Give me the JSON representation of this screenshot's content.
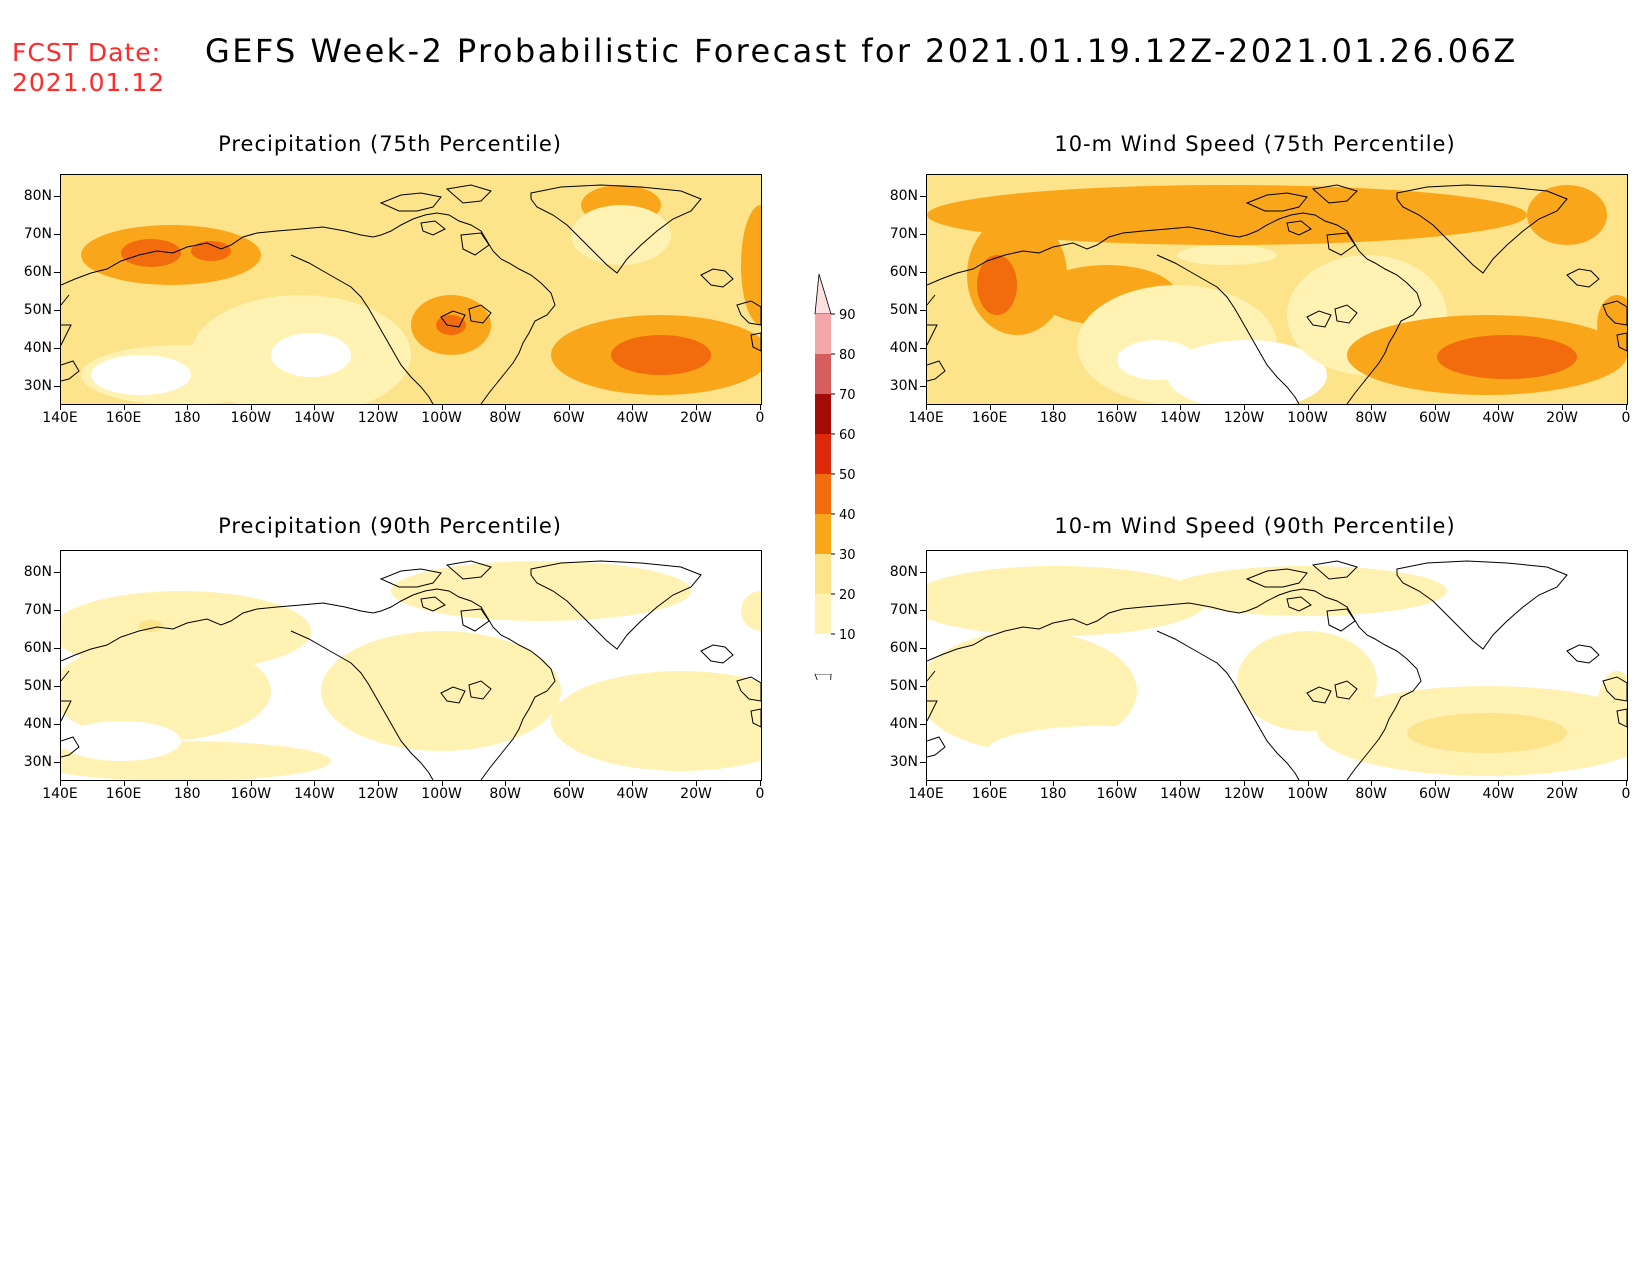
{
  "header": {
    "fcst_label": "FCST Date:",
    "fcst_value": "2021.01.12",
    "title": "GEFS Week-2 Probabilistic Forecast for 2021.01.19.12Z-2021.01.26.06Z"
  },
  "axes": {
    "lat_labels": [
      "80N",
      "70N",
      "60N",
      "50N",
      "40N",
      "30N"
    ],
    "lon_labels": [
      "140E",
      "160E",
      "180",
      "160W",
      "140W",
      "120W",
      "100W",
      "80W",
      "60W",
      "40W",
      "20W",
      "0"
    ]
  },
  "panels": [
    {
      "title": "Precipitation (75th Percentile)"
    },
    {
      "title": "10-m Wind Speed (75th Percentile)"
    },
    {
      "title": "Precipitation (90th Percentile)"
    },
    {
      "title": "10-m Wind Speed (90th Percentile)"
    }
  ],
  "colorbar": {
    "levels": [
      "90",
      "80",
      "70",
      "60",
      "50",
      "40",
      "30",
      "20",
      "10"
    ],
    "colors": {
      "c10": "#ffffff",
      "c20": "#fff2b2",
      "c30": "#fde38a",
      "c40": "#faa61a",
      "c50": "#f26b0d",
      "c60": "#dc2a0a",
      "c70": "#a50b06",
      "c80": "#d65d5d",
      "c90": "#f3a7a8",
      "c95": "#fde1e1"
    }
  },
  "chart_data": {
    "type": "heatmap",
    "units": "probability (%)",
    "colorbar_levels": [
      10,
      20,
      30,
      40,
      50,
      60,
      70,
      80,
      90
    ],
    "lat_range": [
      25,
      85
    ],
    "lon_range": [
      "140E",
      "0"
    ]
  }
}
